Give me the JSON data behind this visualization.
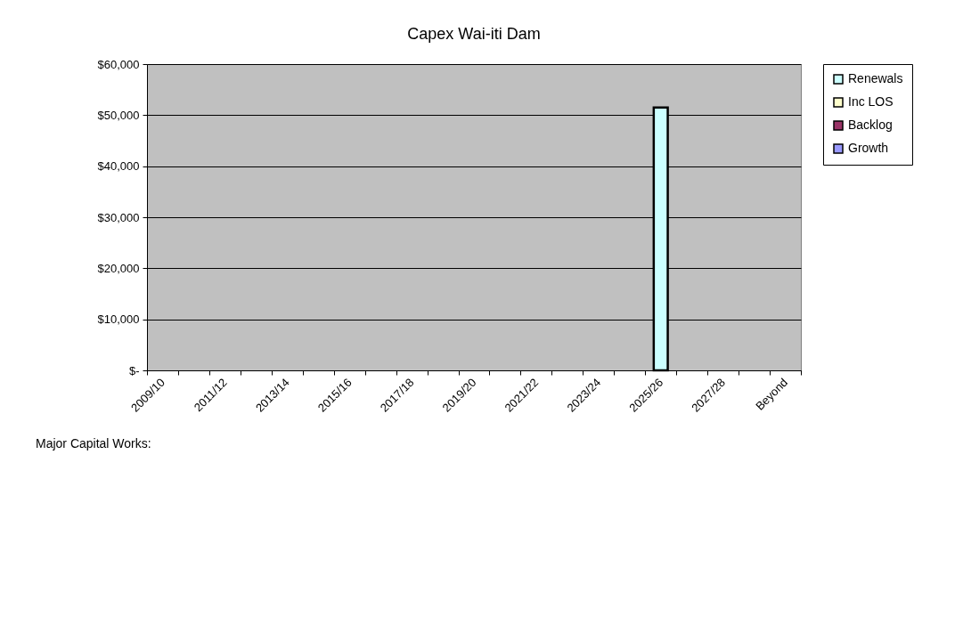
{
  "chart_data": {
    "type": "bar",
    "title": "Capex Wai-iti Dam",
    "categories": [
      "2009/10",
      null,
      "2011/12",
      null,
      "2013/14",
      null,
      "2015/16",
      null,
      "2017/18",
      null,
      "2019/20",
      null,
      "2021/22",
      null,
      "2023/24",
      null,
      "2025/26",
      null,
      "2027/28",
      null,
      "Beyond"
    ],
    "series": [
      {
        "name": "Renewals",
        "color": "#ccffff",
        "values": [
          null,
          null,
          null,
          null,
          null,
          null,
          null,
          null,
          null,
          null,
          null,
          null,
          null,
          null,
          null,
          null,
          51500,
          null,
          null,
          null,
          null
        ]
      },
      {
        "name": "Inc LOS",
        "color": "#ffffcc",
        "values": [
          null,
          null,
          null,
          null,
          null,
          null,
          null,
          null,
          null,
          null,
          null,
          null,
          null,
          null,
          null,
          null,
          null,
          null,
          null,
          null,
          null
        ]
      },
      {
        "name": "Backlog",
        "color": "#993366",
        "values": [
          null,
          null,
          null,
          null,
          null,
          null,
          null,
          null,
          null,
          null,
          null,
          null,
          null,
          null,
          null,
          null,
          null,
          null,
          null,
          null,
          null
        ]
      },
      {
        "name": "Growth",
        "color": "#9999ff",
        "values": [
          null,
          null,
          null,
          null,
          null,
          null,
          null,
          null,
          null,
          null,
          null,
          null,
          null,
          null,
          null,
          null,
          null,
          null,
          null,
          null,
          null
        ]
      }
    ],
    "ylim": [
      0,
      60000
    ],
    "yticks": [
      {
        "value": 0,
        "label": "$-"
      },
      {
        "value": 10000,
        "label": "$10,000"
      },
      {
        "value": 20000,
        "label": "$20,000"
      },
      {
        "value": 30000,
        "label": "$30,000"
      },
      {
        "value": 40000,
        "label": "$40,000"
      },
      {
        "value": 50000,
        "label": "$50,000"
      },
      {
        "value": 60000,
        "label": "$60,000"
      }
    ],
    "grid": "y",
    "legend": "right",
    "annotations": [
      "Major Capital Works:"
    ]
  }
}
